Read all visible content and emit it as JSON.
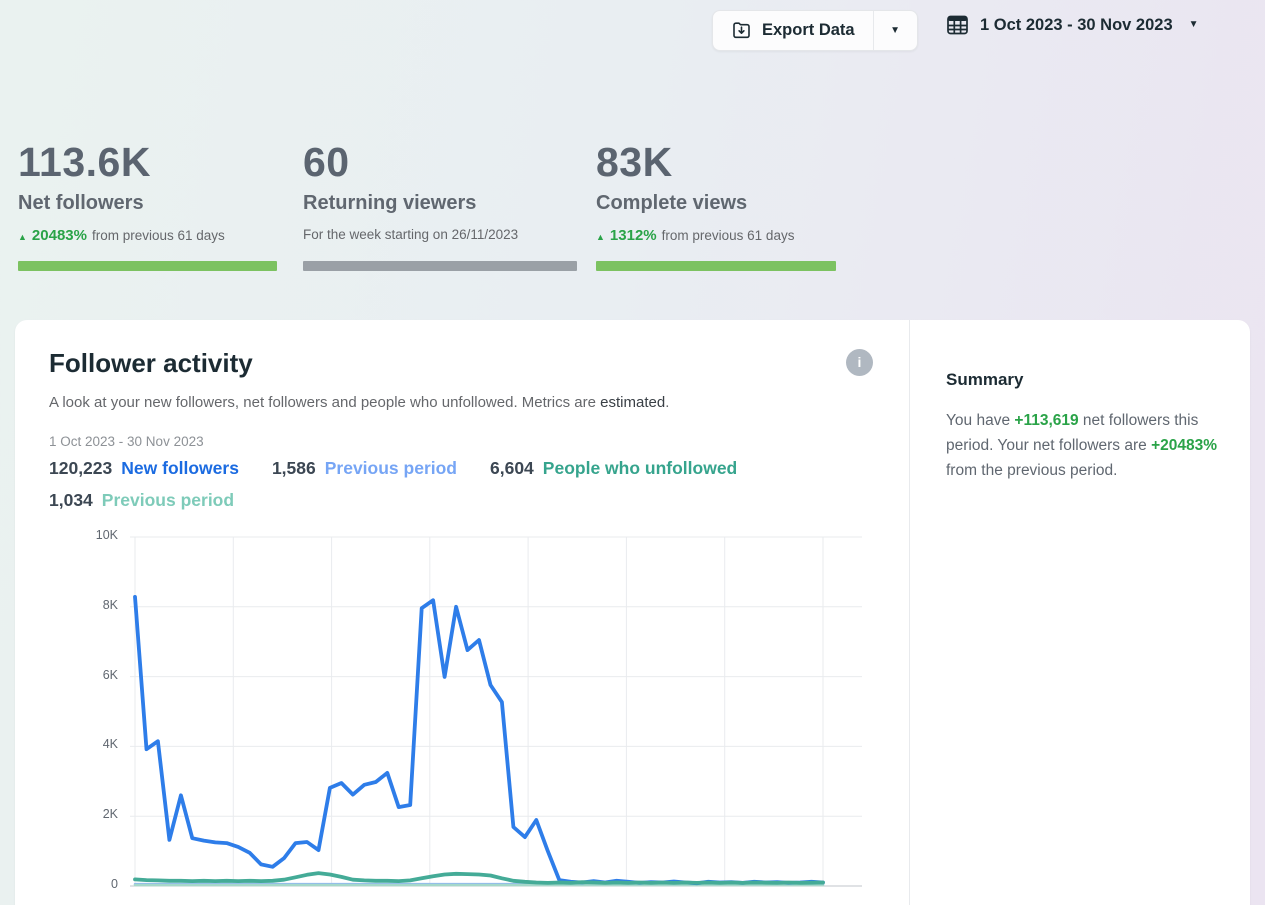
{
  "colors": {
    "positive": "#2aa348",
    "bar_green": "#7cc261",
    "bar_grey": "#9aa0a6"
  },
  "topbar": {
    "export_label": "Export Data",
    "date_range": "1 Oct 2023 - 30 Nov 2023"
  },
  "stats": [
    {
      "value": "113.6K",
      "label": "Net followers",
      "change": "20483%",
      "change_suffix": "from previous 61 days",
      "bar_color": "#7cc261"
    },
    {
      "value": "60",
      "label": "Returning viewers",
      "subtext": "For the week starting on 26/11/2023",
      "bar_color": "#9aa0a6"
    },
    {
      "value": "83K",
      "label": "Complete views",
      "change": "1312%",
      "change_suffix": "from previous 61 days",
      "bar_color": "#7cc261"
    }
  ],
  "panel": {
    "title": "Follower activity",
    "info_glyph": "i",
    "subtitle_pre": "A look at your new followers, net followers and people who unfollowed. Metrics are ",
    "subtitle_em": "estimated",
    "subtitle_post": ".",
    "date_range": "1 Oct 2023 - 30 Nov 2023",
    "legend": [
      {
        "value": "120,223",
        "label": "New followers",
        "color": "#1b6be1"
      },
      {
        "value": "1,586",
        "label": "Previous period",
        "color": "#76a5f5"
      },
      {
        "value": "6,604",
        "label": "People who unfollowed",
        "color": "#36a48d"
      },
      {
        "value": "1,034",
        "label": "Previous period",
        "color": "#7ecbb9"
      }
    ]
  },
  "summary": {
    "title": "Summary",
    "p1": "You have ",
    "p2": "+113,619",
    "p3": " net followers this period. Your net followers are ",
    "p4": "+20483%",
    "p5": " from the previous period."
  },
  "chart_data": {
    "type": "line",
    "title": "Follower activity",
    "x_start": "1 Oct 2023",
    "x_end": "30 Nov 2023",
    "x_points": 61,
    "ylim": [
      0,
      10000
    ],
    "ytick_values": [
      0,
      2000,
      4000,
      6000,
      8000,
      10000
    ],
    "ytick_labels": [
      "0",
      "2K",
      "4K",
      "6K",
      "8K",
      "10K"
    ],
    "grid": true,
    "legend_position": "top",
    "series": [
      {
        "name": "New followers (previous period)",
        "color": "#8fb6f2",
        "width": 2.5,
        "constant": 55
      },
      {
        "name": "People who unfollowed (previous period)",
        "color": "#a5d8ca",
        "width": 2.5,
        "constant": 28
      },
      {
        "name": "New followers",
        "color": "#2e7de9",
        "width": 3.8,
        "values": [
          8284,
          3920,
          4150,
          1320,
          2600,
          1370,
          1300,
          1250,
          1230,
          1120,
          950,
          620,
          550,
          800,
          1230,
          1260,
          1030,
          2810,
          2950,
          2620,
          2900,
          2980,
          3240,
          2260,
          2320,
          7960,
          8190,
          5990,
          8000,
          6760,
          7050,
          5760,
          5270,
          1690,
          1400,
          1890,
          1000,
          170,
          120,
          100,
          140,
          100,
          150,
          120,
          90,
          110,
          100,
          130,
          100,
          80,
          120,
          100,
          110,
          90,
          120,
          100,
          110,
          90,
          100,
          120,
          100
        ]
      },
      {
        "name": "People who unfollowed",
        "color": "#44ab97",
        "width": 3.8,
        "values": [
          190,
          170,
          160,
          150,
          150,
          140,
          150,
          140,
          150,
          140,
          150,
          140,
          150,
          180,
          250,
          320,
          370,
          330,
          260,
          180,
          160,
          150,
          150,
          140,
          160,
          220,
          280,
          330,
          350,
          340,
          330,
          300,
          220,
          150,
          120,
          100,
          90,
          100,
          90,
          110,
          100,
          90,
          100,
          90,
          100,
          90,
          100,
          90,
          100,
          90,
          100,
          90,
          100,
          90,
          100,
          95,
          90,
          100,
          90,
          95,
          100
        ]
      }
    ]
  }
}
